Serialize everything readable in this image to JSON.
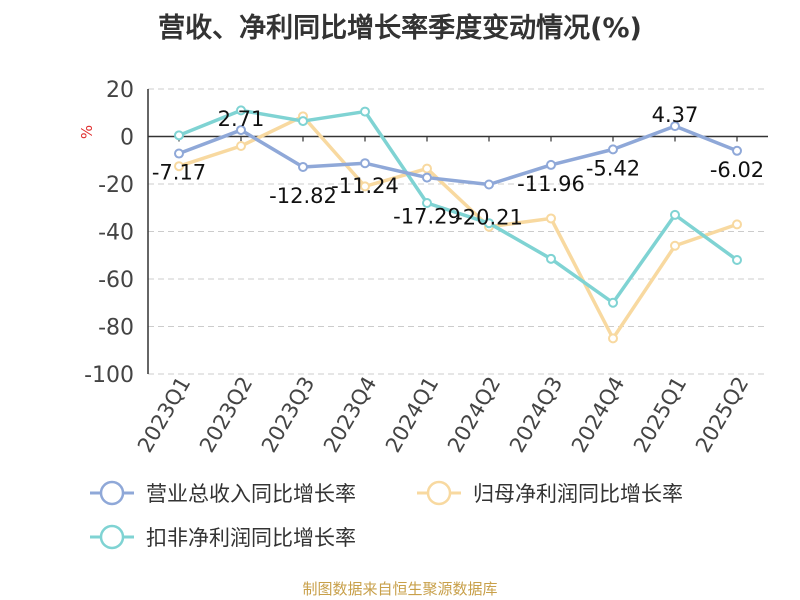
{
  "title": "营收、净利同比增长率季度变动情况(%)",
  "source": "制图数据来自恒生聚源数据库",
  "chart_data": {
    "type": "line",
    "ylabel": "%",
    "ylim": [
      -100,
      20
    ],
    "yticks": [
      20,
      0,
      -20,
      -40,
      -60,
      -80,
      -100
    ],
    "categories": [
      "2023Q1",
      "2023Q2",
      "2023Q3",
      "2023Q4",
      "2024Q1",
      "2024Q2",
      "2024Q3",
      "2024Q4",
      "2025Q1",
      "2025Q2"
    ],
    "grid": true,
    "legend_position": "bottom",
    "series": [
      {
        "name": "营业总收入同比增长率",
        "color": "#8fa8d8",
        "values": [
          -7.17,
          2.71,
          -12.82,
          -11.24,
          -17.29,
          -20.21,
          -11.96,
          -5.42,
          4.37,
          -6.02
        ],
        "labels": [
          "-7.17",
          "2.71",
          "-12.82",
          "-11.24",
          "-17.29",
          "-20.21",
          "-11.96",
          "-5.42",
          "4.37",
          "-6.02"
        ]
      },
      {
        "name": "归母净利润同比增长率",
        "color": "#f8d9a0",
        "values": [
          -12.5,
          -4.0,
          8.5,
          -21.0,
          -13.5,
          -38.0,
          -34.5,
          -85.0,
          -46.0,
          -37.0
        ]
      },
      {
        "name": "扣非净利润同比增长率",
        "color": "#7fd3d3",
        "values": [
          0.5,
          11.0,
          6.5,
          10.5,
          -28.0,
          -36.5,
          -51.5,
          -70.0,
          -33.0,
          -52.0
        ]
      }
    ]
  }
}
